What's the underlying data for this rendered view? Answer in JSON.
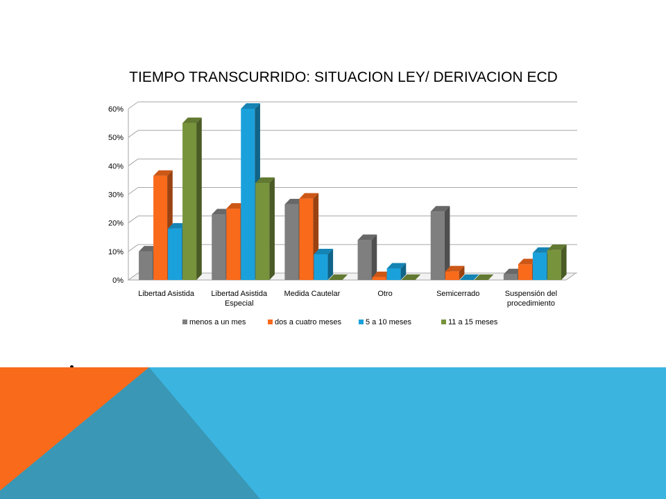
{
  "chart_data": {
    "type": "bar",
    "title": "TIEMPO TRANSCURRIDO: SITUACION LEY/ DERIVACION ECD",
    "categories": [
      [
        "Libertad Asistida"
      ],
      [
        "Libertad Asistida",
        "Especial"
      ],
      [
        "Medida Cautelar"
      ],
      [
        "Otro"
      ],
      [
        "Semicerrado"
      ],
      [
        "Suspensión del",
        "procedimiento"
      ]
    ],
    "series": [
      {
        "name": "menos a un mes",
        "color": "#7f7f7f",
        "values": [
          10,
          23,
          26.5,
          14,
          24,
          2
        ]
      },
      {
        "name": "dos a cuatro meses",
        "color": "#f96a1b",
        "values": [
          36.5,
          25,
          28.5,
          1,
          3,
          5.5
        ]
      },
      {
        "name": "5 a 10 meses",
        "color": "#1aa1dc",
        "values": [
          18,
          60,
          9,
          4,
          0,
          9.5
        ]
      },
      {
        "name": "11 a 15 meses",
        "color": "#77933c",
        "values": [
          55,
          34,
          0,
          0,
          0,
          10.5
        ]
      }
    ],
    "y_ticks": [
      "0%",
      "10%",
      "20%",
      "30%",
      "40%",
      "50%",
      "60%"
    ],
    "ylim": [
      0,
      60
    ],
    "grid": true,
    "legend_position": "bottom",
    "xlabel": "",
    "ylabel": ""
  },
  "slide": {
    "colors": {
      "band_blue": "#3bb4e0",
      "band_orange": "#f96a1b",
      "band_overlap": "#3a97b5"
    }
  }
}
